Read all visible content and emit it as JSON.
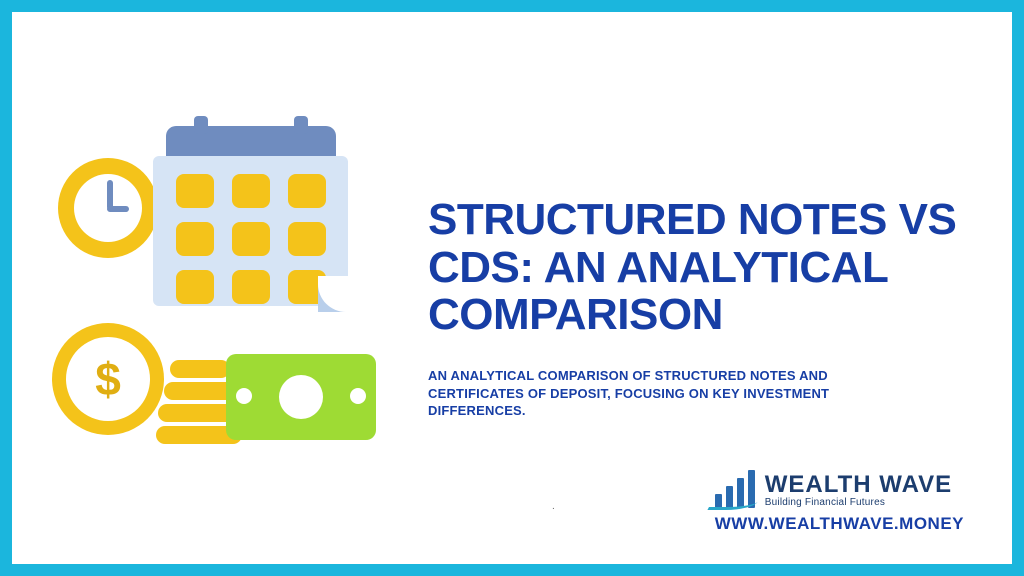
{
  "colors": {
    "frame_border": "#1bb6dd",
    "title": "#173ea5",
    "subtitle": "#173ea5",
    "url": "#173ea5",
    "brand_name": "#1c3d6e",
    "yellow": "#f4c31a",
    "yellow_dark": "#e0ae12",
    "blue_soft": "#6f8cbf",
    "blue_pale": "#d6e4f5",
    "green": "#9edb34",
    "bar_blue": "#2a6bb0",
    "swoosh": "#29a7c9"
  },
  "title": "STRUCTURED NOTES VS CDS: AN ANALYTICAL COMPARISON",
  "subtitle": "AN ANALYTICAL COMPARISON OF STRUCTURED NOTES AND CERTIFICATES OF DEPOSIT, FOCUSING ON KEY INVESTMENT DIFFERENCES.",
  "brand": {
    "name": "WEALTH WAVE",
    "tagline": "Building Financial Futures",
    "url": "WWW.WEALTHWAVE.MONEY"
  },
  "coin_symbol": "$"
}
